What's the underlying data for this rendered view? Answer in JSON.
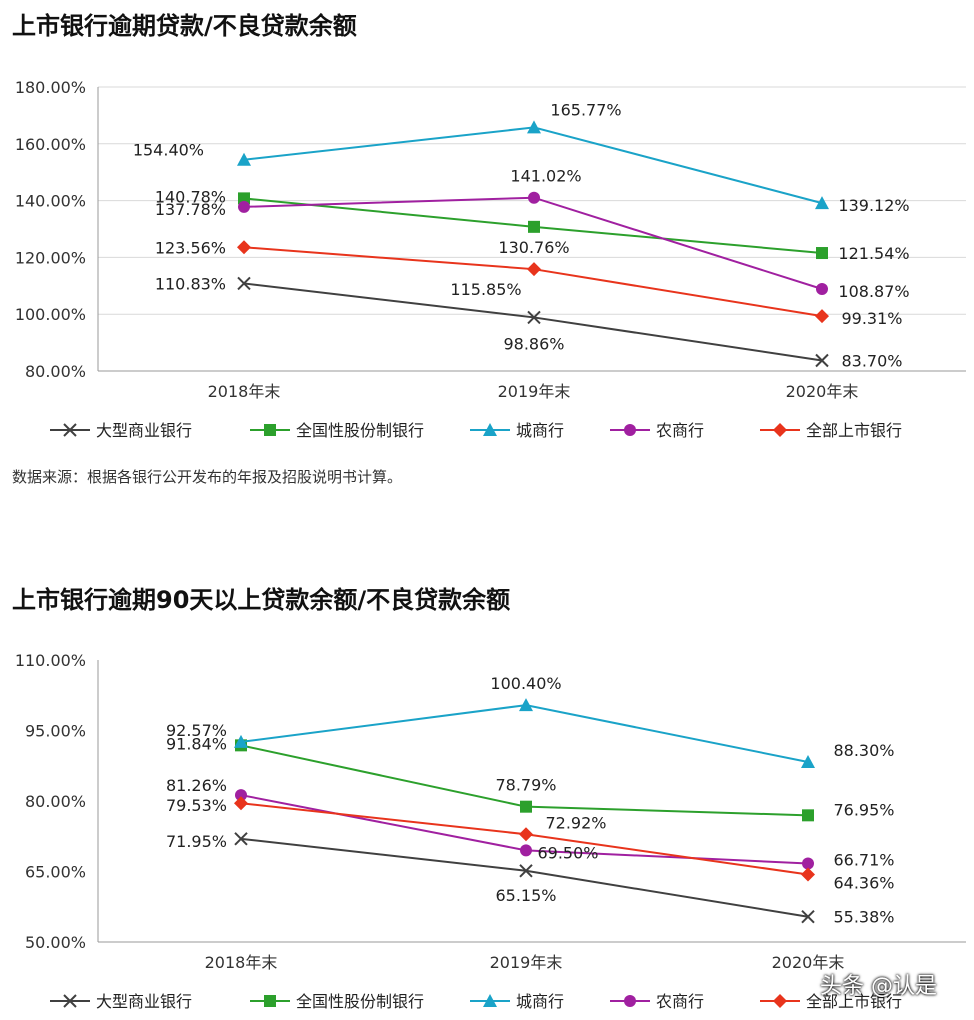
{
  "titles": {
    "chart1": "上市银行逾期贷款/不良贷款余额",
    "chart2": "上市银行逾期90天以上贷款余额/不良贷款余额"
  },
  "source_note": "数据来源：根据各银行公开发布的年报及招股说明书计算。",
  "watermark": "头条 @认是",
  "chart_data": [
    {
      "type": "line",
      "title": "上市银行逾期贷款/不良贷款余额",
      "categories": [
        "2018年末",
        "2019年末",
        "2020年末"
      ],
      "ylim": [
        80,
        180
      ],
      "yticks": [
        "80.00%",
        "100.00%",
        "120.00%",
        "140.00%",
        "160.00%",
        "180.00%"
      ],
      "ytick_values": [
        80,
        100,
        120,
        140,
        160,
        180
      ],
      "grid": true,
      "legend_position": "bottom",
      "series": [
        {
          "name": "大型商业银行",
          "values": [
            110.83,
            98.86,
            83.7
          ],
          "labels": [
            "110.83%",
            "98.86%",
            "83.70%"
          ],
          "color": "#404040",
          "marker": "x"
        },
        {
          "name": "全国性股份制银行",
          "values": [
            140.78,
            130.76,
            121.54
          ],
          "labels": [
            "140.78%",
            "130.76%",
            "121.54%"
          ],
          "color": "#2ca02c",
          "marker": "square"
        },
        {
          "name": "城商行",
          "values": [
            154.4,
            165.77,
            139.12
          ],
          "labels": [
            "154.40%",
            "165.77%",
            "139.12%"
          ],
          "color": "#1aa3c8",
          "marker": "triangle"
        },
        {
          "name": "农商行",
          "values": [
            137.78,
            141.02,
            108.87
          ],
          "labels": [
            "137.78%",
            "141.02%",
            "108.87%"
          ],
          "color": "#a020a0",
          "marker": "circle"
        },
        {
          "name": "全部上市银行",
          "values": [
            123.56,
            115.85,
            99.31
          ],
          "labels": [
            "123.56%",
            "115.85%",
            "99.31%"
          ],
          "color": "#e8341c",
          "marker": "diamond"
        }
      ]
    },
    {
      "type": "line",
      "title": "上市银行逾期90天以上贷款余额/不良贷款余额",
      "categories": [
        "2018年末",
        "2019年末",
        "2020年末"
      ],
      "ylim": [
        50,
        110
      ],
      "yticks": [
        "50.00%",
        "65.00%",
        "80.00%",
        "95.00%",
        "110.00%"
      ],
      "ytick_values": [
        50,
        65,
        80,
        95,
        110
      ],
      "grid": false,
      "legend_position": "bottom",
      "series": [
        {
          "name": "大型商业银行",
          "values": [
            71.95,
            65.15,
            55.38
          ],
          "labels": [
            "71.95%",
            "65.15%",
            "55.38%"
          ],
          "color": "#404040",
          "marker": "x"
        },
        {
          "name": "全国性股份制银行",
          "values": [
            91.84,
            78.79,
            76.95
          ],
          "labels": [
            "91.84%",
            "78.79%",
            "76.95%"
          ],
          "color": "#2ca02c",
          "marker": "square"
        },
        {
          "name": "城商行",
          "values": [
            92.57,
            100.4,
            88.3
          ],
          "labels": [
            "92.57%",
            "100.40%",
            "88.30%"
          ],
          "color": "#1aa3c8",
          "marker": "triangle"
        },
        {
          "name": "农商行",
          "values": [
            81.26,
            69.5,
            66.71
          ],
          "labels": [
            "81.26%",
            "69.50%",
            "66.71%"
          ],
          "color": "#a020a0",
          "marker": "circle"
        },
        {
          "name": "全部上市银行",
          "values": [
            79.53,
            72.92,
            64.36
          ],
          "labels": [
            "79.53%",
            "72.92%",
            "64.36%"
          ],
          "color": "#e8341c",
          "marker": "diamond"
        }
      ]
    }
  ]
}
